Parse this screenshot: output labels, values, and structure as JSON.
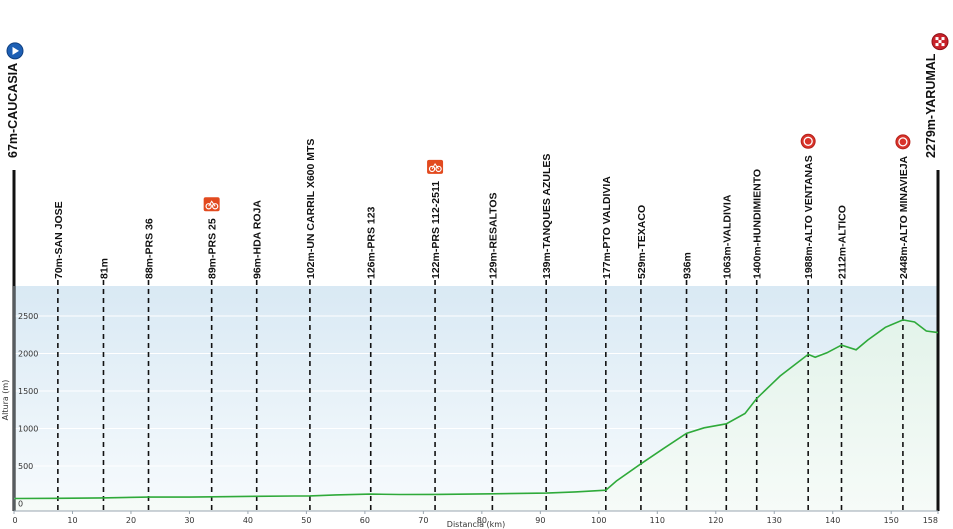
{
  "chart_data": {
    "type": "area",
    "title": "",
    "xlabel": "Distancia (km)",
    "ylabel": "Altura (m)",
    "xlim": [
      0,
      158
    ],
    "ylim": [
      -100,
      2900
    ],
    "x_ticks": [
      0,
      10,
      20,
      30,
      40,
      50,
      60,
      70,
      80,
      90,
      100,
      110,
      120,
      130,
      140,
      150,
      158
    ],
    "y_ticks": [
      0,
      500,
      1000,
      1500,
      2000,
      2500
    ],
    "grid": true,
    "colors": {
      "line": "#2faa3a",
      "fill_top": "#dcebf5",
      "fill_bottom": "#f4fbf6",
      "marker_line": "#111111"
    },
    "start": {
      "km": 0,
      "label": "67m-CAUCASIA",
      "icon": "start-icon"
    },
    "finish": {
      "km": 158,
      "label": "2279m-YARUMAL",
      "icon": "finish-flag-icon"
    },
    "markers": [
      {
        "km": 7.5,
        "label": "70m-SAN JOSE"
      },
      {
        "km": 15.3,
        "label": "81m"
      },
      {
        "km": 23.0,
        "label": "88m-PRS 36"
      },
      {
        "km": 33.8,
        "label": "89m-PRS 25",
        "icon": "sprint-icon"
      },
      {
        "km": 41.5,
        "label": "96m-HDA ROJA"
      },
      {
        "km": 50.6,
        "label": "102m-UN CARRIL X600 MTS"
      },
      {
        "km": 61.0,
        "label": "126m-PRS 123"
      },
      {
        "km": 72.0,
        "label": "122m-PRS 112-2511",
        "icon": "sprint-icon"
      },
      {
        "km": 81.8,
        "label": "129m-RESALTOS"
      },
      {
        "km": 91.0,
        "label": "139m-TANQUES AZULES"
      },
      {
        "km": 101.2,
        "label": "177m-PTO VALDIVIA"
      },
      {
        "km": 107.2,
        "label": "529m-TEXACO"
      },
      {
        "km": 115.0,
        "label": "936m"
      },
      {
        "km": 121.8,
        "label": "1063m-VALDIVIA"
      },
      {
        "km": 127.0,
        "label": "1400m-HUNDIMIENTO"
      },
      {
        "km": 135.8,
        "label": "1988m-ALTO VENTANAS",
        "icon": "climb-hc-icon"
      },
      {
        "km": 141.5,
        "label": "2112m-ALTICO"
      },
      {
        "km": 152.0,
        "label": "2448m-ALTO MINAVIEJA",
        "icon": "climb-cat2-icon"
      }
    ],
    "profile": {
      "x": [
        0,
        7.5,
        15,
        23,
        30,
        34,
        41.5,
        48,
        50.6,
        55,
        61,
        66,
        72,
        81.8,
        91,
        96,
        101.2,
        103,
        107.2,
        111,
        115,
        118,
        121.8,
        125,
        127,
        131,
        135.8,
        137,
        139,
        141.5,
        144,
        146,
        149,
        152,
        154,
        156,
        158
      ],
      "y": [
        67,
        70,
        75,
        85,
        86,
        89,
        96,
        100,
        102,
        115,
        126,
        120,
        122,
        129,
        139,
        155,
        177,
        300,
        529,
        730,
        936,
        1010,
        1063,
        1200,
        1400,
        1700,
        1988,
        1950,
        2010,
        2112,
        2050,
        2180,
        2350,
        2448,
        2420,
        2300,
        2279
      ]
    }
  }
}
